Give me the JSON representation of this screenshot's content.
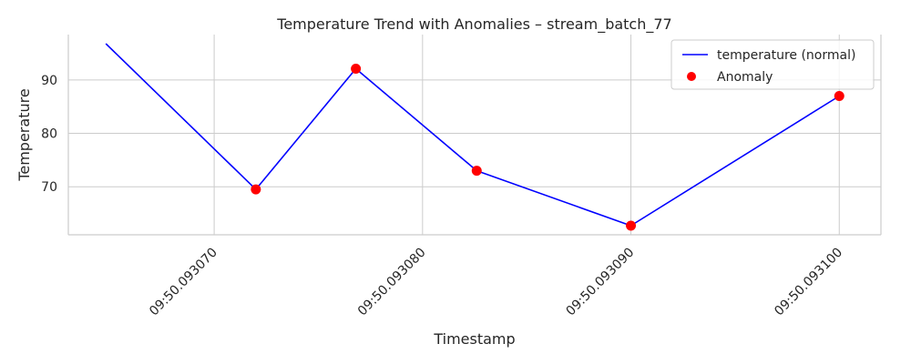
{
  "chart_data": {
    "type": "line",
    "title": "Temperature Trend with Anomalies – stream_batch_77",
    "xlabel": "Timestamp",
    "ylabel": "Temperature",
    "x_unit": "seconds after 09:50",
    "xlim": [
      50.093063,
      50.093102
    ],
    "ylim": [
      61,
      98.5
    ],
    "x_ticks": [
      50.09307,
      50.09308,
      50.09309,
      50.0931
    ],
    "x_tick_labels": [
      "09:50.093070",
      "09:50.093080",
      "09:50.093090",
      "09:50.093100"
    ],
    "y_ticks": [
      70,
      80,
      90
    ],
    "y_tick_labels": [
      "70",
      "80",
      "90"
    ],
    "grid": true,
    "legend_position": "top-right",
    "series": [
      {
        "name": "temperature (normal)",
        "kind": "line",
        "color": "#0000ff",
        "x": [
          50.0930648,
          50.093072,
          50.0930768,
          50.0930826,
          50.09309,
          50.0931
        ],
        "y": [
          96.8,
          69.5,
          92.1,
          73.0,
          62.7,
          87.0
        ]
      },
      {
        "name": "Anomaly",
        "kind": "scatter",
        "color": "#ff0000",
        "x": [
          50.093072,
          50.0930768,
          50.0930826,
          50.09309,
          50.0931
        ],
        "y": [
          69.5,
          92.1,
          73.0,
          62.7,
          87.0
        ]
      }
    ]
  }
}
